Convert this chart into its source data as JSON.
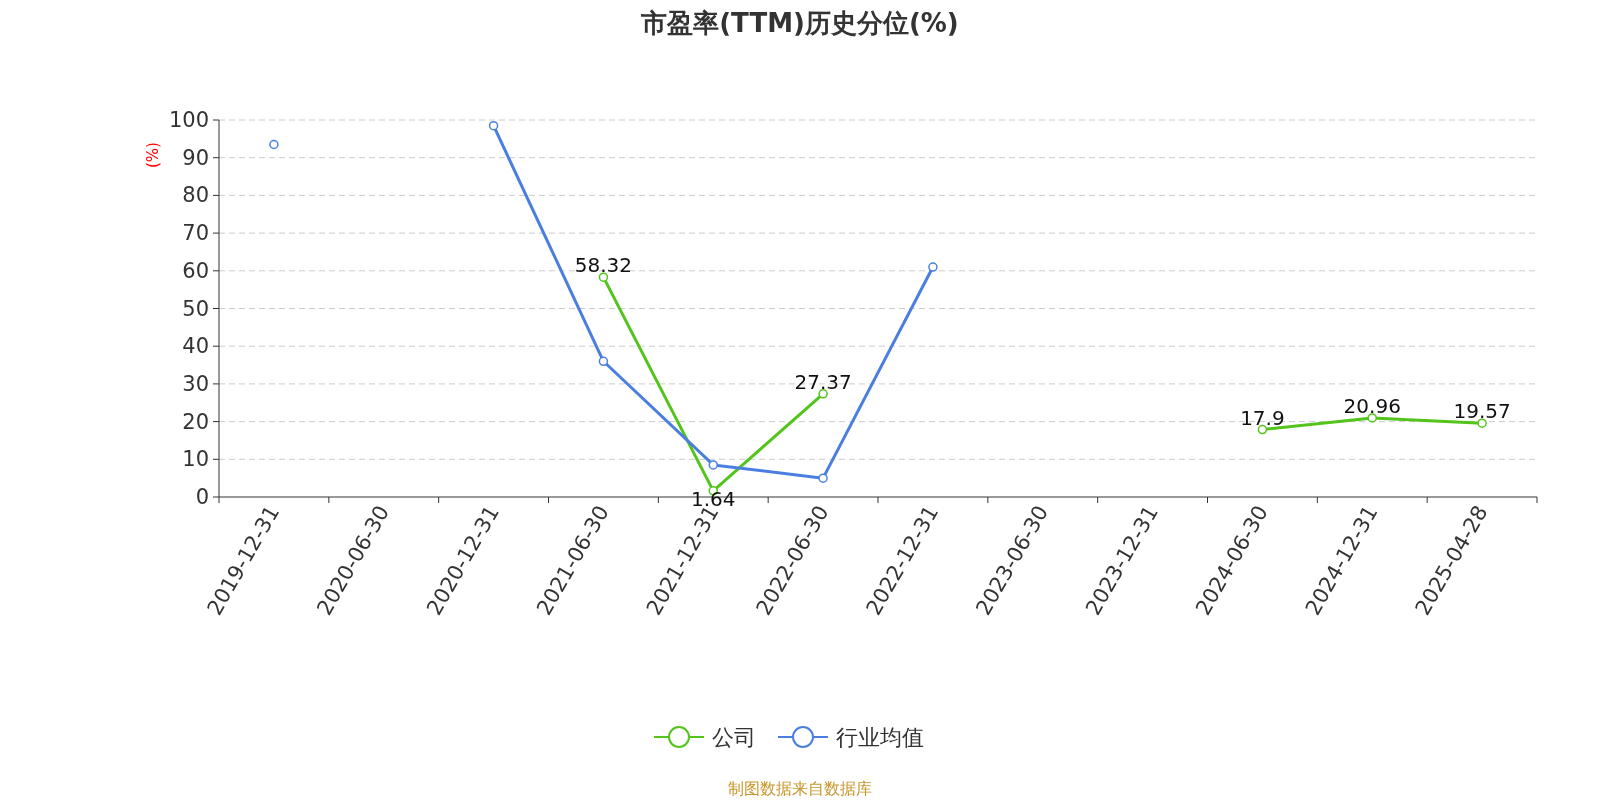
{
  "chart_data": {
    "type": "line",
    "title": "市盈率(TTM)历史分位(%)",
    "ylabel": "(%)",
    "categories": [
      "2019-12-31",
      "2020-06-30",
      "2020-12-31",
      "2021-06-30",
      "2021-12-31",
      "2022-06-30",
      "2022-12-31",
      "2023-06-30",
      "2023-12-31",
      "2024-06-30",
      "2024-12-31",
      "2025-04-28"
    ],
    "series": [
      {
        "name": "公司",
        "color": "#52c41a",
        "values": [
          null,
          null,
          null,
          58.32,
          1.64,
          27.37,
          null,
          null,
          null,
          17.9,
          20.96,
          19.57
        ],
        "value_labels": [
          null,
          null,
          null,
          "58.32",
          "1.64",
          "27.37",
          null,
          null,
          null,
          "17.9",
          "20.96",
          "19.57"
        ]
      },
      {
        "name": "行业均值",
        "color": "#4a7fe0",
        "values": [
          93.5,
          null,
          98.5,
          36,
          8.5,
          5,
          61,
          null,
          null,
          null,
          null,
          null
        ]
      }
    ],
    "ylim": [
      0,
      100
    ],
    "yticks": [
      0,
      10,
      20,
      30,
      40,
      50,
      60,
      70,
      80,
      90,
      100
    ],
    "grid": "y",
    "legend": "bottom",
    "marker": "circle",
    "line_style": "solid",
    "annotations": [
      "制图数据来自数据库"
    ]
  }
}
